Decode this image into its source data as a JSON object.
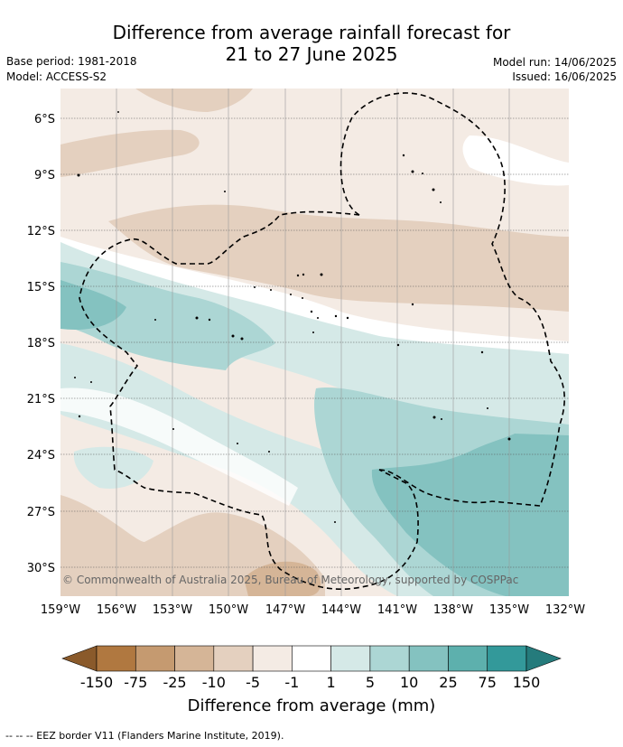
{
  "title_line1": "Difference from average rainfall forecast for",
  "title_line2": "21 to 27 June 2025",
  "base_period": "Base period: 1981-2018",
  "model": "Model: ACCESS-S2",
  "model_run": "Model run: 14/06/2025",
  "issued": "Issued: 16/06/2025",
  "copyright": "© Commonwealth of Australia 2025, Bureau of Meteorology, supported by COSPPac",
  "lat_labels": [
    "6°S",
    "9°S",
    "12°S",
    "15°S",
    "18°S",
    "21°S",
    "24°S",
    "27°S",
    "30°S"
  ],
  "lon_labels": [
    "159°W",
    "156°W",
    "153°W",
    "150°W",
    "147°W",
    "144°W",
    "141°W",
    "138°W",
    "135°W",
    "132°W"
  ],
  "colorbar": {
    "title": "Difference from average (mm)",
    "labels": [
      "-150",
      "-75",
      "-25",
      "-10",
      "-5",
      "-1",
      "1",
      "5",
      "10",
      "25",
      "75",
      "150"
    ],
    "colors": [
      "#8a5a2b",
      "#b07840",
      "#c59a70",
      "#d5b597",
      "#e4d0bf",
      "#f4ebe4",
      "#ffffff",
      "#d5e9e7",
      "#acd6d4",
      "#84c2c0",
      "#5db0ad",
      "#33999a",
      "#257b7c"
    ]
  },
  "footer": "--  --  -- EEZ border V11 (Flanders Marine Institute, 2019)."
}
